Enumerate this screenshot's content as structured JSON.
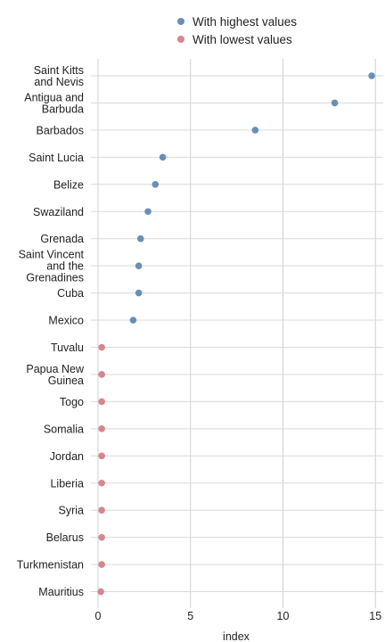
{
  "chart_data": {
    "type": "scatter",
    "xlabel": "index",
    "ylabel": "",
    "xlim": [
      0,
      15
    ],
    "xticks": [
      0,
      5,
      10,
      15
    ],
    "grid": true,
    "legend_position": "top",
    "categories": [
      "Saint Kitts and Nevis",
      "Antigua and Barbuda",
      "Barbados",
      "Saint Lucia",
      "Belize",
      "Swaziland",
      "Grenada",
      "Saint Vincent and the Grenadines",
      "Cuba",
      "Mexico",
      "Tuvalu",
      "Papua New Guinea",
      "Togo",
      "Somalia",
      "Jordan",
      "Liberia",
      "Syria",
      "Belarus",
      "Turkmenistan",
      "Mauritius"
    ],
    "category_lines": [
      [
        "Saint Kitts",
        "and Nevis"
      ],
      [
        "Antigua and",
        "Barbuda"
      ],
      [
        "Barbados"
      ],
      [
        "Saint Lucia"
      ],
      [
        "Belize"
      ],
      [
        "Swaziland"
      ],
      [
        "Grenada"
      ],
      [
        "Saint Vincent",
        "and the",
        "Grenadines"
      ],
      [
        "Cuba"
      ],
      [
        "Mexico"
      ],
      [
        "Tuvalu"
      ],
      [
        "Papua New",
        "Guinea"
      ],
      [
        "Togo"
      ],
      [
        "Somalia"
      ],
      [
        "Jordan"
      ],
      [
        "Liberia"
      ],
      [
        "Syria"
      ],
      [
        "Belarus"
      ],
      [
        "Turkmenistan"
      ],
      [
        "Mauritius"
      ]
    ],
    "series": [
      {
        "name": "With highest values",
        "color": "#6a8fb5",
        "points": [
          {
            "category": "Saint Kitts and Nevis",
            "value": 14.8
          },
          {
            "category": "Antigua and Barbuda",
            "value": 12.8
          },
          {
            "category": "Barbados",
            "value": 8.5
          },
          {
            "category": "Saint Lucia",
            "value": 3.5
          },
          {
            "category": "Belize",
            "value": 3.1
          },
          {
            "category": "Swaziland",
            "value": 2.7
          },
          {
            "category": "Grenada",
            "value": 2.3
          },
          {
            "category": "Saint Vincent and the Grenadines",
            "value": 2.2
          },
          {
            "category": "Cuba",
            "value": 2.2
          },
          {
            "category": "Mexico",
            "value": 1.9
          }
        ]
      },
      {
        "name": "With lowest values",
        "color": "#d98590",
        "points": [
          {
            "category": "Tuvalu",
            "value": 0.2
          },
          {
            "category": "Papua New Guinea",
            "value": 0.2
          },
          {
            "category": "Togo",
            "value": 0.2
          },
          {
            "category": "Somalia",
            "value": 0.2
          },
          {
            "category": "Jordan",
            "value": 0.2
          },
          {
            "category": "Liberia",
            "value": 0.2
          },
          {
            "category": "Syria",
            "value": 0.2
          },
          {
            "category": "Belarus",
            "value": 0.2
          },
          {
            "category": "Turkmenistan",
            "value": 0.2
          },
          {
            "category": "Mauritius",
            "value": 0.15
          }
        ]
      }
    ]
  }
}
